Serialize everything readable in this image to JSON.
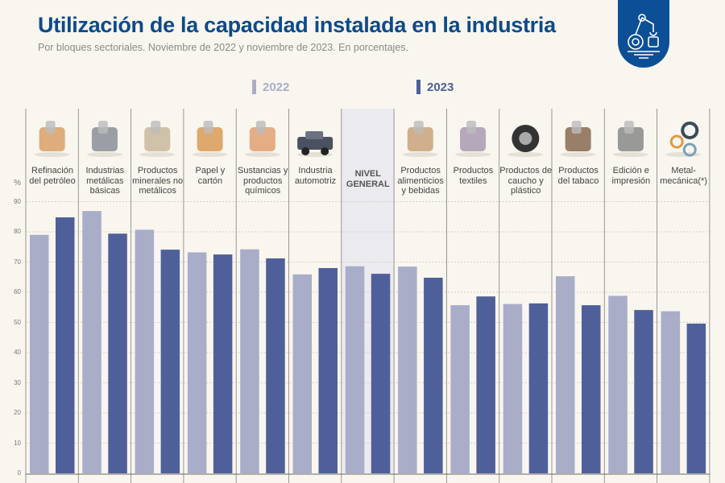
{
  "header": {
    "title": "Utilización de la capacidad instalada en la industria",
    "subtitle": "Por bloques sectoriales. Noviembre de 2022 y noviembre de 2023. En porcentajes."
  },
  "badge_icon": "industrial-robot-arm-icon",
  "colors": {
    "2022": "#a9adc8",
    "2023": "#4f5f99",
    "title": "#0d4a8a",
    "highlight": "#ebebef"
  },
  "chart_data": {
    "type": "bar",
    "title": "Utilización de la capacidad instalada en la industria",
    "subtitle": "Por bloques sectoriales. Noviembre de 2022 y noviembre de 2023. En porcentajes.",
    "ylabel": "%",
    "ylim": [
      0,
      90
    ],
    "yticks": [
      "0",
      "10",
      "20",
      "30",
      "40",
      "50",
      "60",
      "70",
      "80",
      "90"
    ],
    "grid": true,
    "legend_position": "top",
    "categories": [
      "Refinación del petróleo",
      "Industrias metálicas básicas",
      "Productos minerales no metálicos",
      "Papel y cartón",
      "Sustancias y productos químicos",
      "Industria automotriz",
      "NIVEL GENERAL",
      "Productos alimenticios y bebidas",
      "Productos textiles",
      "Productos de caucho y plástico",
      "Productos del tabaco",
      "Edición e impresión",
      "Metal-mecánica(*)"
    ],
    "category_icons": [
      "oil-refinery-icon",
      "steel-ladle-icon",
      "cement-mixer-icon",
      "cardboard-box-icon",
      "chemistry-flask-icon",
      "pickup-truck-icon",
      "",
      "milk-bread-icon",
      "fabric-rolls-icon",
      "tire-icon",
      "tobacco-pipe-icon",
      "paper-rolls-icon",
      "gears-icon"
    ],
    "highlighted_category": "NIVEL GENERAL",
    "series": [
      {
        "name": "2022",
        "values": [
          79.0,
          86.9,
          80.7,
          73.2,
          74.2,
          65.9,
          68.6,
          68.5,
          55.7,
          56.1,
          65.3,
          58.8,
          53.7
        ]
      },
      {
        "name": "2023",
        "values": [
          84.8,
          79.4,
          74.1,
          72.5,
          71.2,
          68.0,
          66.1,
          64.8,
          58.6,
          56.3,
          55.7,
          54.1,
          49.6
        ]
      }
    ]
  }
}
